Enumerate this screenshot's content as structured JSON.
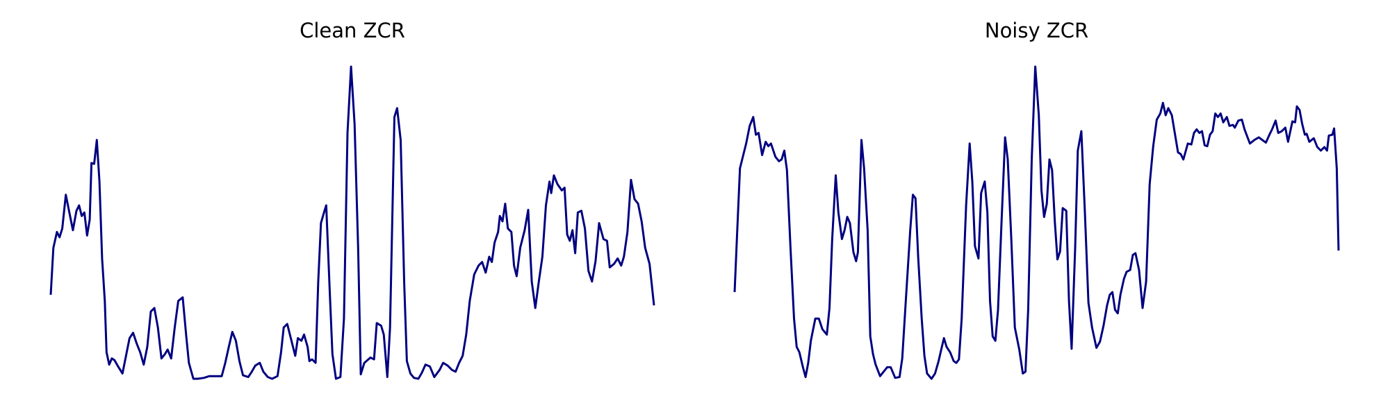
{
  "chart_data": [
    {
      "type": "line",
      "title": "Clean ZCR",
      "color": "#000080",
      "x": [
        0,
        3,
        7,
        10,
        13,
        17,
        21,
        25,
        29,
        32,
        35,
        38,
        41,
        44,
        46,
        49,
        52,
        55,
        58,
        61,
        63,
        66,
        69,
        72,
        76,
        81,
        85,
        89,
        93,
        97,
        101,
        105,
        109,
        113,
        117,
        121,
        125,
        129,
        132,
        136,
        140,
        144,
        149,
        153,
        156,
        161,
        166,
        173,
        179,
        187,
        193,
        197,
        201,
        205,
        209,
        213,
        217,
        223,
        227,
        231,
        236,
        240,
        245,
        250,
        256,
        260,
        263,
        267,
        271,
        276,
        279,
        283,
        286,
        290,
        292,
        295,
        299,
        302,
        305,
        309,
        311,
        315,
        318,
        322,
        327,
        331,
        335,
        339,
        343,
        347,
        350,
        354,
        361,
        365,
        368,
        373,
        376,
        380,
        383,
        388,
        391,
        395,
        399,
        402,
        406,
        410,
        415,
        419,
        423,
        428,
        433,
        439,
        443,
        448,
        453,
        457,
        461,
        465,
        469,
        473,
        478,
        483,
        487,
        491,
        495,
        498,
        501,
        505,
        507,
        510,
        513,
        516,
        520,
        523,
        526,
        530,
        535,
        539,
        543,
        547,
        551,
        555,
        559,
        563,
        565,
        568,
        572,
        577,
        580,
        583,
        586,
        589,
        592,
        595,
        599,
        603,
        607,
        611,
        615,
        619,
        624,
        628,
        631,
        636,
        640,
        644,
        647,
        651,
        655,
        659,
        663,
        667,
        671,
        676,
        681
      ],
      "values": [
        0.097,
        0.15,
        0.168,
        0.162,
        0.172,
        0.21,
        0.19,
        0.17,
        0.192,
        0.198,
        0.186,
        0.19,
        0.164,
        0.182,
        0.246,
        0.245,
        0.272,
        0.225,
        0.138,
        0.09,
        0.032,
        0.018,
        0.025,
        0.023,
        0.016,
        0.008,
        0.028,
        0.048,
        0.054,
        0.042,
        0.032,
        0.018,
        0.038,
        0.078,
        0.082,
        0.06,
        0.025,
        0.03,
        0.035,
        0.025,
        0.06,
        0.09,
        0.094,
        0.05,
        0.02,
        0.002,
        0.002,
        0.003,
        0.005,
        0.005,
        0.005,
        0.02,
        0.038,
        0.055,
        0.045,
        0.022,
        0.006,
        0.004,
        0.01,
        0.017,
        0.02,
        0.01,
        0.004,
        0.002,
        0.005,
        0.032,
        0.06,
        0.064,
        0.048,
        0.028,
        0.048,
        0.045,
        0.052,
        0.038,
        0.022,
        0.024,
        0.02,
        0.112,
        0.178,
        0.192,
        0.198,
        0.1,
        0.03,
        0.002,
        0.004,
        0.07,
        0.28,
        0.355,
        0.29,
        0.15,
        0.007,
        0.02,
        0.026,
        0.024,
        0.065,
        0.062,
        0.052,
        0.004,
        0.06,
        0.298,
        0.308,
        0.272,
        0.11,
        0.022,
        0.008,
        0.003,
        0.002,
        0.009,
        0.018,
        0.016,
        0.004,
        0.012,
        0.02,
        0.017,
        0.012,
        0.01,
        0.02,
        0.028,
        0.052,
        0.09,
        0.12,
        0.13,
        0.134,
        0.122,
        0.14,
        0.134,
        0.156,
        0.168,
        0.186,
        0.18,
        0.2,
        0.172,
        0.168,
        0.13,
        0.118,
        0.15,
        0.17,
        0.193,
        0.112,
        0.082,
        0.112,
        0.14,
        0.198,
        0.225,
        0.212,
        0.232,
        0.222,
        0.215,
        0.218,
        0.165,
        0.158,
        0.17,
        0.144,
        0.19,
        0.192,
        0.172,
        0.124,
        0.112,
        0.135,
        0.178,
        0.16,
        0.158,
        0.128,
        0.132,
        0.138,
        0.13,
        0.14,
        0.168,
        0.227,
        0.205,
        0.2,
        0.18,
        0.15,
        0.132,
        0.085
      ]
    },
    {
      "type": "line",
      "title": "Noisy ZCR",
      "color": "#000080",
      "x": [
        0,
        3,
        6,
        9,
        13,
        17,
        21,
        24,
        27,
        31,
        35,
        38,
        41,
        46,
        50,
        53,
        56,
        59,
        63,
        67,
        70,
        73,
        77,
        80,
        83,
        86,
        91,
        95,
        99,
        104,
        107,
        110,
        114,
        117,
        121,
        124,
        127,
        130,
        134,
        137,
        139,
        143,
        146,
        150,
        153,
        156,
        159,
        164,
        168,
        172,
        176,
        181,
        186,
        189,
        193,
        198,
        201,
        204,
        207,
        211,
        214,
        217,
        222,
        226,
        230,
        233,
        236,
        239,
        243,
        247,
        250,
        253,
        256,
        261,
        265,
        268,
        271,
        275,
        278,
        282,
        285,
        288,
        291,
        294,
        297,
        301,
        305,
        308,
        312,
        316,
        321,
        325,
        328,
        331,
        335,
        339,
        343,
        346,
        349,
        352,
        355,
        358,
        361,
        364,
        367,
        370,
        374,
        377,
        380,
        384,
        387,
        391,
        395,
        399,
        403,
        408,
        412,
        416,
        420,
        423,
        426,
        429,
        432,
        435,
        439,
        442,
        446,
        449,
        452,
        456,
        460,
        464,
        468,
        472,
        476,
        480,
        483,
        486,
        489,
        493,
        496,
        500,
        503,
        506,
        511,
        515,
        518,
        521,
        524,
        527,
        530,
        533,
        536,
        539,
        542,
        545,
        548,
        551,
        555,
        558,
        562,
        564,
        568,
        572,
        575,
        581,
        586,
        591,
        595,
        599,
        603,
        606,
        610,
        613,
        617,
        621,
        624,
        629,
        632,
        634,
        637,
        640,
        643,
        645,
        648,
        653,
        657,
        661,
        665,
        668,
        670,
        674,
        676,
        679,
        681
      ],
      "values": [
        0.1,
        0.17,
        0.24,
        0.252,
        0.268,
        0.288,
        0.298,
        0.278,
        0.28,
        0.255,
        0.27,
        0.265,
        0.268,
        0.253,
        0.248,
        0.25,
        0.26,
        0.238,
        0.15,
        0.07,
        0.038,
        0.032,
        0.015,
        0.004,
        0.02,
        0.045,
        0.07,
        0.07,
        0.058,
        0.052,
        0.082,
        0.16,
        0.232,
        0.19,
        0.16,
        0.17,
        0.185,
        0.178,
        0.145,
        0.135,
        0.145,
        0.272,
        0.24,
        0.17,
        0.05,
        0.03,
        0.018,
        0.005,
        0.01,
        0.015,
        0.015,
        0.003,
        0.004,
        0.025,
        0.09,
        0.17,
        0.21,
        0.206,
        0.14,
        0.07,
        0.028,
        0.008,
        0.002,
        0.008,
        0.022,
        0.035,
        0.048,
        0.038,
        0.032,
        0.022,
        0.02,
        0.024,
        0.07,
        0.198,
        0.268,
        0.225,
        0.152,
        0.138,
        0.212,
        0.225,
        0.19,
        0.09,
        0.05,
        0.045,
        0.08,
        0.18,
        0.275,
        0.25,
        0.16,
        0.06,
        0.035,
        0.008,
        0.01,
        0.08,
        0.25,
        0.355,
        0.3,
        0.215,
        0.185,
        0.2,
        0.25,
        0.238,
        0.18,
        0.137,
        0.146,
        0.195,
        0.192,
        0.09,
        0.036,
        0.15,
        0.26,
        0.282,
        0.19,
        0.088,
        0.06,
        0.037,
        0.044,
        0.062,
        0.085,
        0.097,
        0.1,
        0.08,
        0.076,
        0.097,
        0.115,
        0.123,
        0.125,
        0.142,
        0.144,
        0.125,
        0.082,
        0.112,
        0.222,
        0.265,
        0.295,
        0.302,
        0.314,
        0.3,
        0.308,
        0.3,
        0.282,
        0.258,
        0.256,
        0.25,
        0.268,
        0.267,
        0.28,
        0.284,
        0.28,
        0.282,
        0.266,
        0.265,
        0.278,
        0.282,
        0.302,
        0.298,
        0.302,
        0.292,
        0.298,
        0.288,
        0.289,
        0.286,
        0.294,
        0.295,
        0.284,
        0.268,
        0.272,
        0.275,
        0.272,
        0.269,
        0.278,
        0.284,
        0.294,
        0.28,
        0.282,
        0.286,
        0.27,
        0.293,
        0.292,
        0.31,
        0.306,
        0.29,
        0.278,
        0.279,
        0.27,
        0.274,
        0.264,
        0.26,
        0.264,
        0.26,
        0.277,
        0.278,
        0.285,
        0.24,
        0.147
      ]
    }
  ]
}
